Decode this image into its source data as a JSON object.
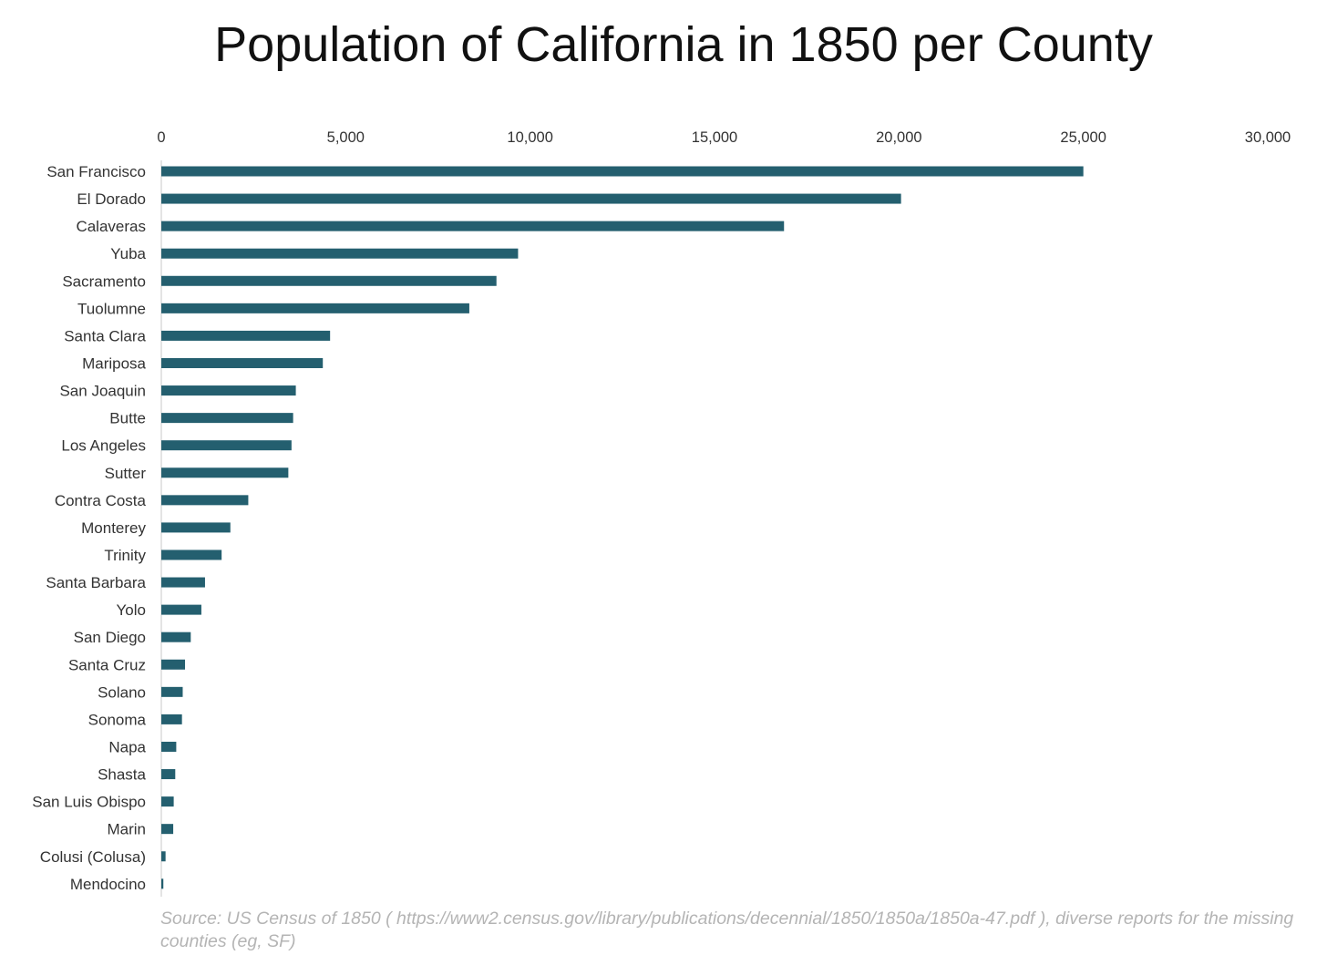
{
  "chart_data": {
    "type": "bar",
    "orientation": "horizontal",
    "title": "Population of California in 1850 per County",
    "xlabel": "",
    "ylabel": "",
    "xlim": [
      0,
      30000
    ],
    "xticks": [
      0,
      5000,
      10000,
      15000,
      20000,
      25000,
      30000
    ],
    "xtick_labels": [
      "0",
      "5,000",
      "10,000",
      "15,000",
      "20,000",
      "25,000",
      "30,000"
    ],
    "x_axis_position": "top",
    "grid": false,
    "legend": "none",
    "bar_color": "#245f6f",
    "categories": [
      "San Francisco",
      "El Dorado",
      "Calaveras",
      "Yuba",
      "Sacramento",
      "Tuolumne",
      "Santa Clara",
      "Mariposa",
      "San Joaquin",
      "Butte",
      "Los Angeles",
      "Sutter",
      "Contra Costa",
      "Monterey",
      "Trinity",
      "Santa Barbara",
      "Yolo",
      "San Diego",
      "Santa Cruz",
      "Solano",
      "Sonoma",
      "Napa",
      "Shasta",
      "San Luis Obispo",
      "Marin",
      "Colusi (Colusa)",
      "Mendocino"
    ],
    "values": [
      25000,
      20057,
      16884,
      9673,
      9087,
      8351,
      4576,
      4379,
      3647,
      3574,
      3530,
      3444,
      2358,
      1872,
      1635,
      1185,
      1086,
      798,
      643,
      580,
      560,
      405,
      378,
      336,
      323,
      115,
      55
    ],
    "source": "Source:  US Census of 1850 ( https://www2.census.gov/library/publications/decennial/1850/1850a/1850a-47.pdf ), diverse reports for the missing counties (eg, SF)"
  }
}
